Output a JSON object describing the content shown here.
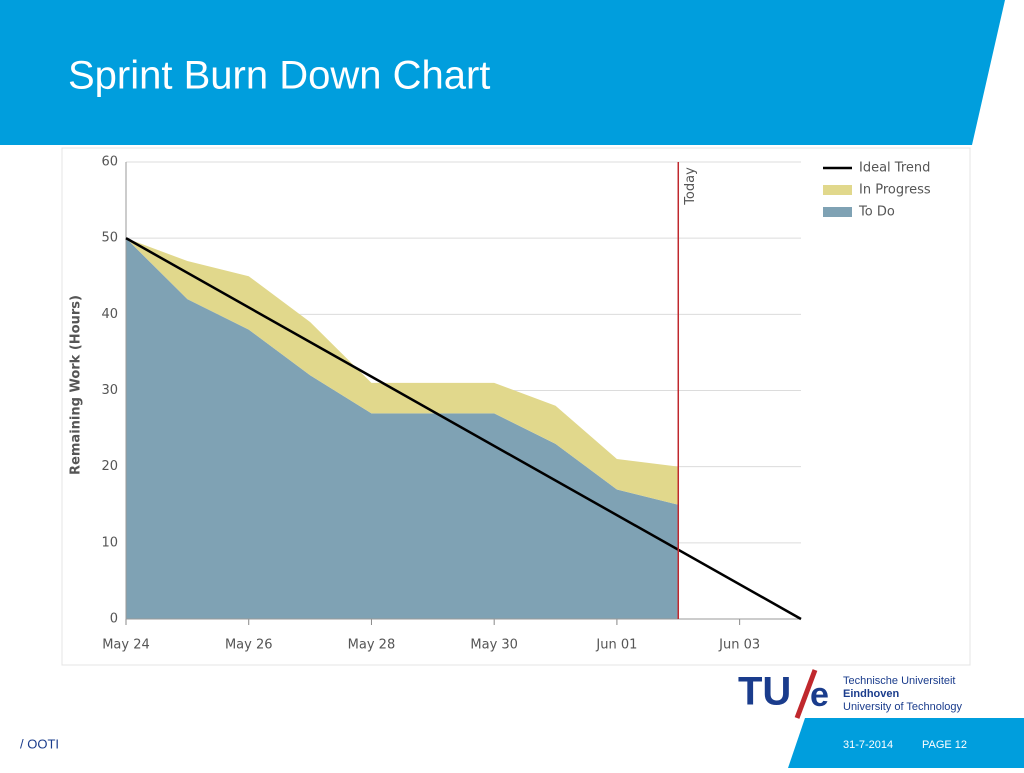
{
  "slide": {
    "title": "Sprint Burn Down Chart",
    "footer_left": "/ OOTI",
    "date": "31-7-2014",
    "page": "PAGE 12",
    "logo": {
      "mark_left": "TU",
      "mark_right": "e",
      "line1": "Technische Universiteit",
      "line2": "Eindhoven",
      "line3": "University of Technology"
    }
  },
  "chart_data": {
    "type": "stacked-area",
    "ylabel": "Remaining Work (Hours)",
    "x": [
      "May 24",
      "May 25",
      "May 26",
      "May 27",
      "May 28",
      "May 29",
      "May 30",
      "May 31",
      "Jun 01",
      "Jun 02",
      "Jun 03",
      "Jun 04"
    ],
    "xticks": [
      "May 24",
      "May 26",
      "May 28",
      "May 30",
      "Jun 01",
      "Jun 03"
    ],
    "ylim": [
      0,
      60
    ],
    "yticks": [
      0,
      10,
      20,
      30,
      40,
      50,
      60
    ],
    "grid": true,
    "series": [
      {
        "name": "To Do",
        "color": "#7fa2b4",
        "values": [
          50,
          42,
          38,
          32,
          27,
          27,
          27,
          23,
          17,
          15,
          null,
          null
        ]
      },
      {
        "name": "In Progress",
        "color": "#e1d88c",
        "values": [
          0,
          5,
          7,
          7,
          4,
          4,
          4,
          5,
          4,
          5,
          null,
          null
        ]
      }
    ],
    "trend": {
      "name": "Ideal Trend",
      "color": "#000000",
      "x": [
        "May 24",
        "Jun 04"
      ],
      "values": [
        50,
        0
      ]
    },
    "annotation": {
      "text": "Today",
      "x": "Jun 02",
      "color": "#c0282d"
    },
    "legend": "top-right"
  }
}
